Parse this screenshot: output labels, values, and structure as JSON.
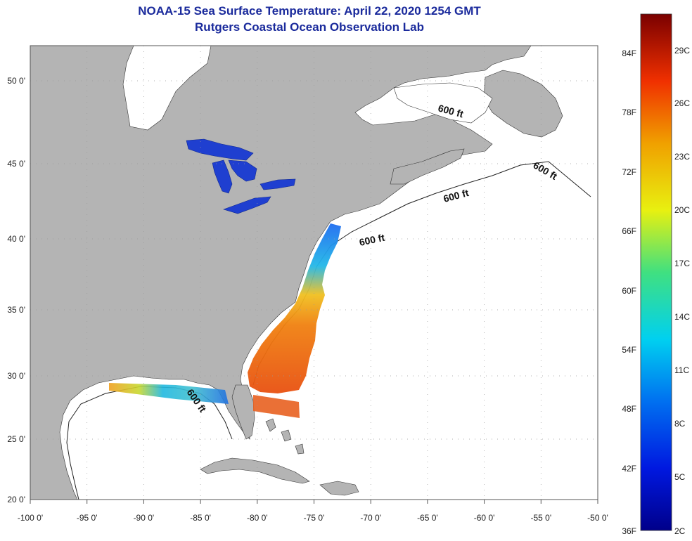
{
  "header": {
    "title": "NOAA-15 Sea Surface Temperature:  April 22, 2020 1254 GMT",
    "subtitle": "Rutgers Coastal Ocean Observation Lab"
  },
  "axes": {
    "lon_labels": [
      "-100 0'",
      "-95 0'",
      "-90 0'",
      "-85 0'",
      "-80 0'",
      "-75 0'",
      "-70 0'",
      "-65 0'",
      "-60 0'",
      "-55 0'",
      "-50 0'"
    ],
    "lat_labels": [
      "20 0'",
      "25 0'",
      "30 0'",
      "35 0'",
      "40 0'",
      "45 0'",
      "50 0'"
    ]
  },
  "contours": {
    "label": "600 ft"
  },
  "colorbar": {
    "fahrenheit": [
      "84F",
      "78F",
      "72F",
      "66F",
      "60F",
      "54F",
      "48F",
      "42F",
      "36F"
    ],
    "celsius": [
      "29C",
      "26C",
      "23C",
      "20C",
      "17C",
      "14C",
      "11C",
      "8C",
      "5C",
      "2C"
    ]
  },
  "colors": {
    "land": "#b4b4b4",
    "ocean": "#ffffff",
    "title": "#1a2a9c",
    "lakes": "#1f3fd0"
  }
}
